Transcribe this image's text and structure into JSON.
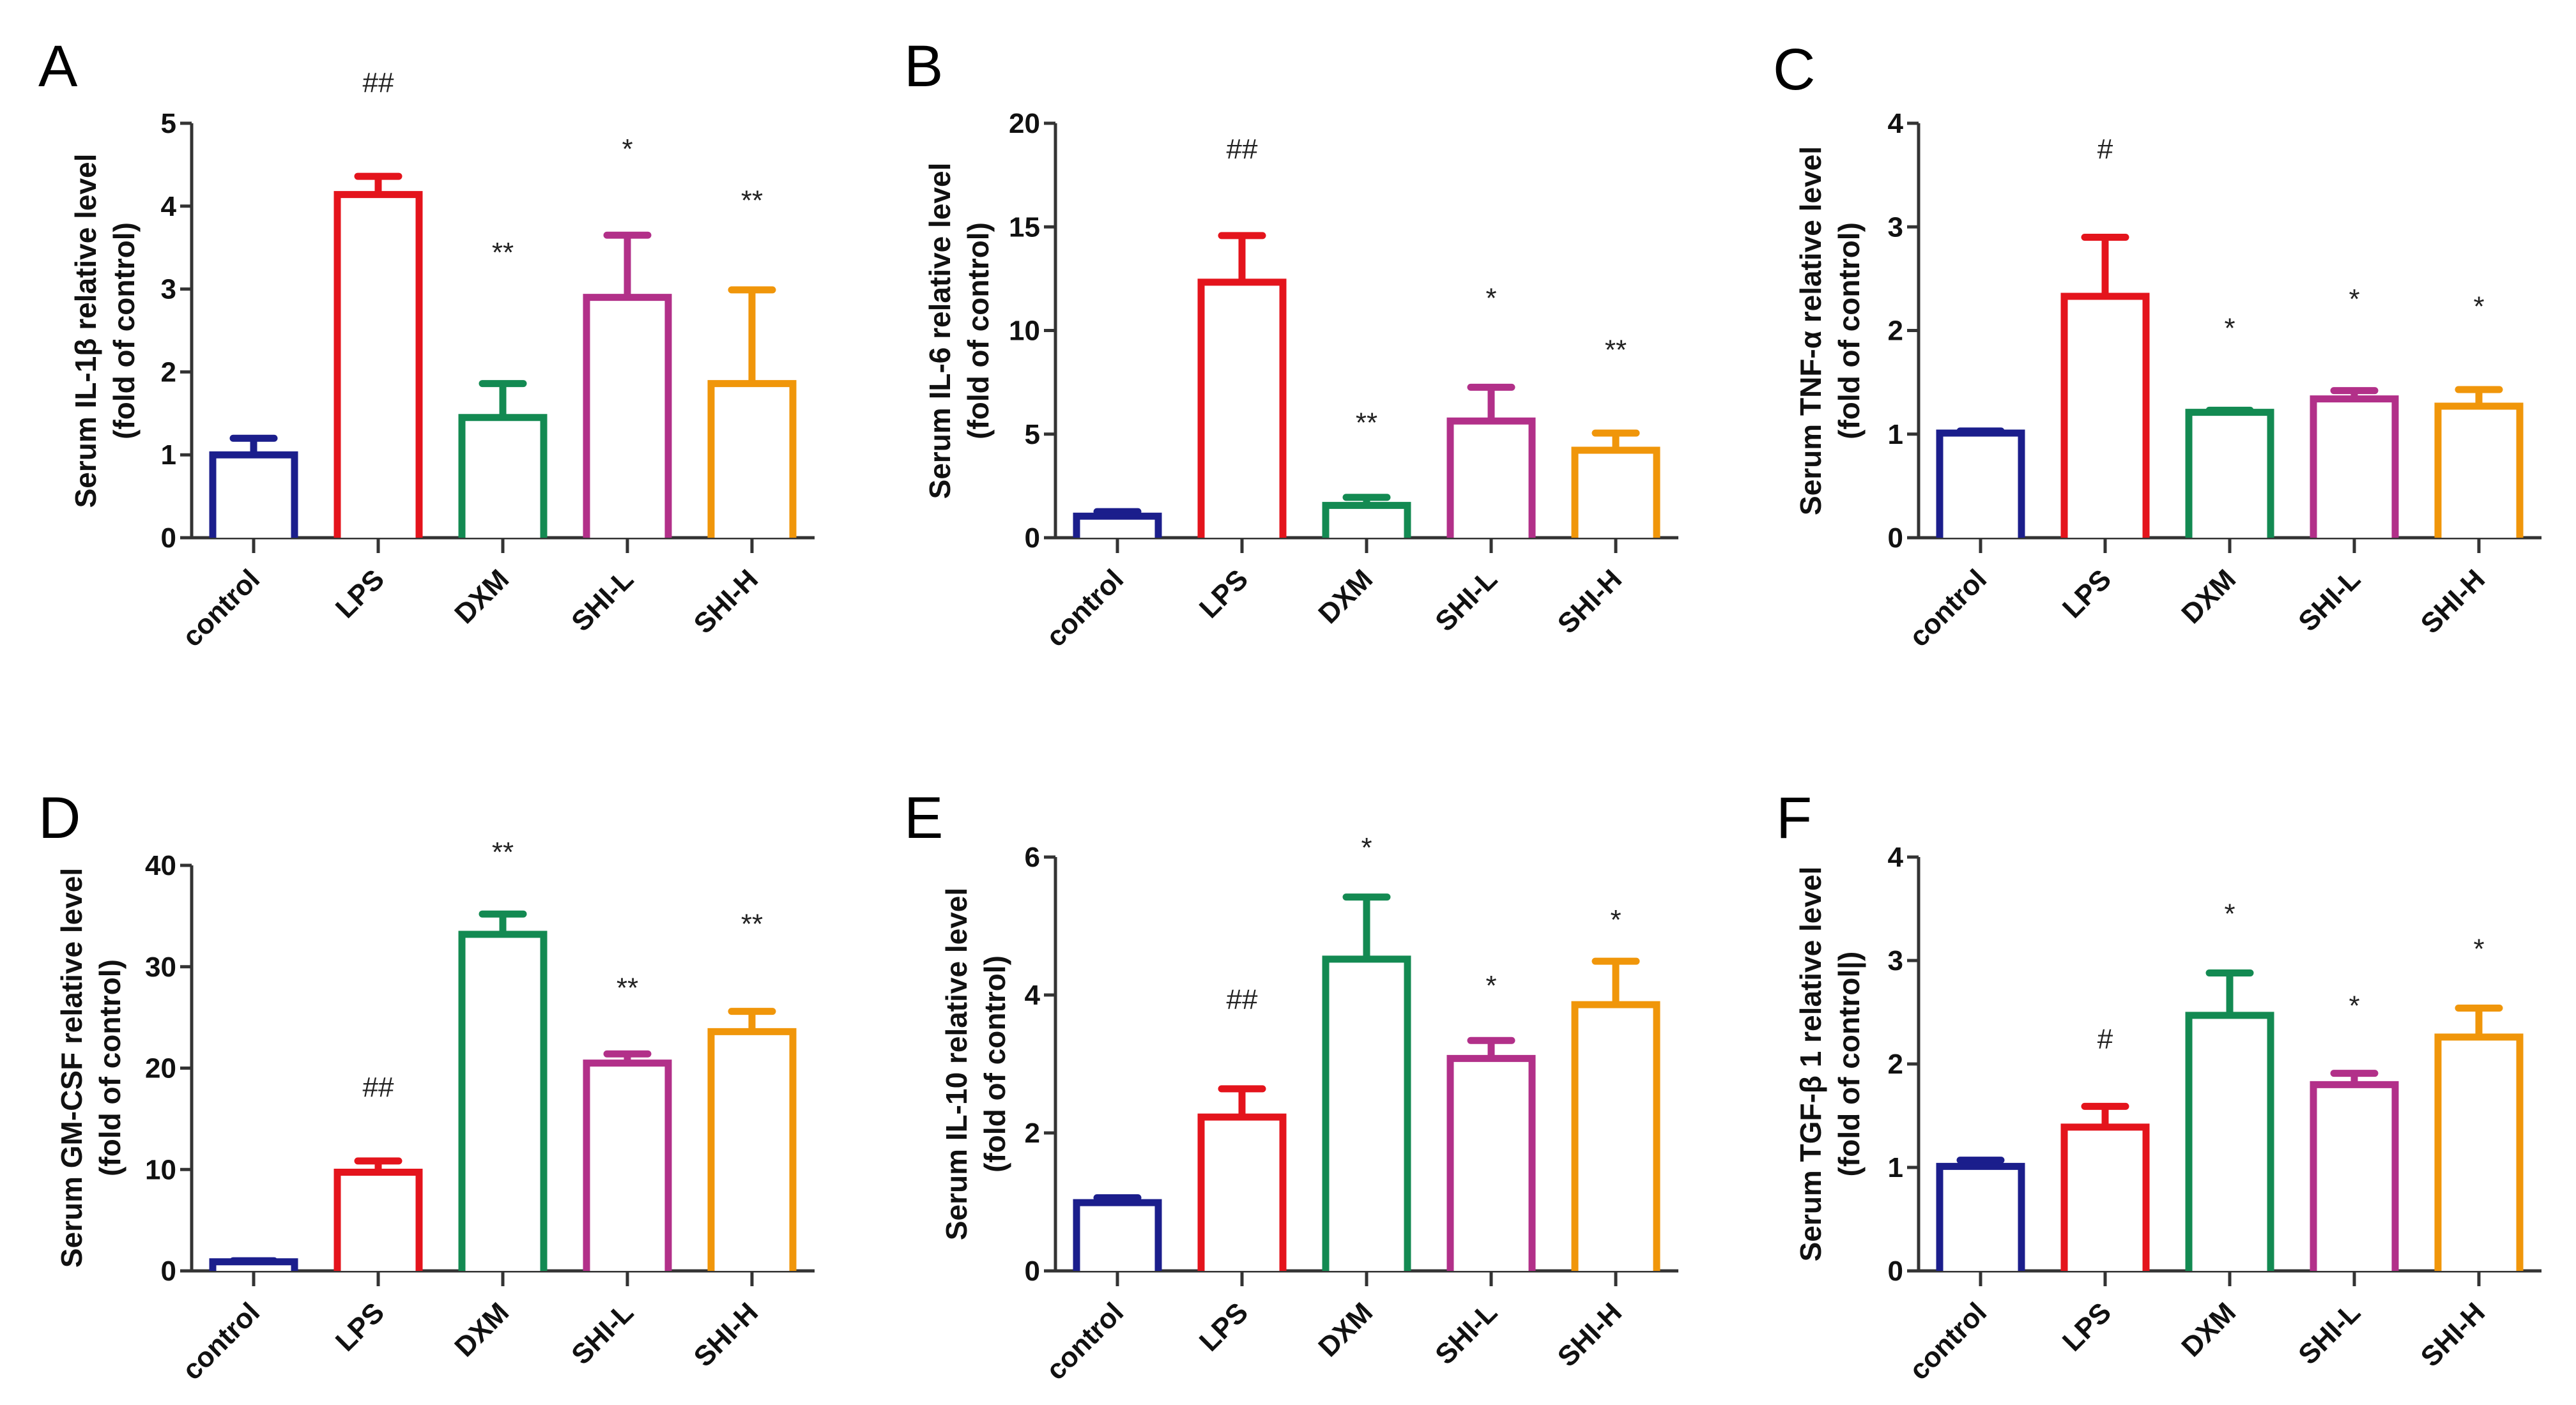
{
  "figure": {
    "categories": [
      "control",
      "LPS",
      "DXM",
      "SHI-L",
      "SHI-H"
    ],
    "colors": [
      "#1b1e8c",
      "#e4141c",
      "#138a52",
      "#b23089",
      "#f0960a"
    ]
  },
  "chart_data": [
    {
      "panel": "A",
      "type": "bar",
      "title": "",
      "ylabel": [
        "Serum IL-1β  relative level",
        "(fold of control)"
      ],
      "xlabel": "",
      "categories": [
        "control",
        "LPS",
        "DXM",
        "SHI-L",
        "SHI-H"
      ],
      "values": [
        1.0,
        4.14,
        1.45,
        2.9,
        1.86
      ],
      "error_upper": [
        1.2,
        4.36,
        1.86,
        3.65,
        2.99
      ],
      "ylim": [
        0,
        5
      ],
      "yticks": [
        0,
        1,
        2,
        3,
        4,
        5
      ],
      "annotations": [
        {
          "category": "LPS",
          "text": "##",
          "y": 5.5
        },
        {
          "category": "DXM",
          "text": "**",
          "y": 3.45
        },
        {
          "category": "SHI-L",
          "text": "*",
          "y": 4.7
        },
        {
          "category": "SHI-H",
          "text": "**",
          "y": 4.08
        }
      ],
      "grid": false,
      "legend": "none"
    },
    {
      "panel": "B",
      "type": "bar",
      "title": "",
      "ylabel": [
        "Serum IL-6 relative level",
        "(fold of control)"
      ],
      "xlabel": "",
      "categories": [
        "control",
        "LPS",
        "DXM",
        "SHI-L",
        "SHI-H"
      ],
      "values": [
        1.04,
        12.33,
        1.56,
        5.63,
        4.22
      ],
      "error_upper": [
        1.26,
        14.58,
        1.95,
        7.26,
        5.05
      ],
      "ylim": [
        0,
        20
      ],
      "yticks": [
        0,
        5,
        10,
        15,
        20
      ],
      "annotations": [
        {
          "category": "LPS",
          "text": "##",
          "y": 18.8
        },
        {
          "category": "DXM",
          "text": "**",
          "y": 5.6
        },
        {
          "category": "SHI-L",
          "text": "*",
          "y": 11.6
        },
        {
          "category": "SHI-H",
          "text": "**",
          "y": 9.1
        }
      ],
      "grid": false,
      "legend": "none"
    },
    {
      "panel": "C",
      "type": "bar",
      "title": "",
      "ylabel": [
        "Serum TNF-α  relative level",
        "(fold of control)"
      ],
      "xlabel": "",
      "categories": [
        "control",
        "LPS",
        "DXM",
        "SHI-L",
        "SHI-H"
      ],
      "values": [
        1.01,
        2.33,
        1.21,
        1.34,
        1.27
      ],
      "error_upper": [
        1.03,
        2.9,
        1.23,
        1.42,
        1.43
      ],
      "ylim": [
        0,
        4
      ],
      "yticks": [
        0,
        1,
        2,
        3,
        4
      ],
      "annotations": [
        {
          "category": "LPS",
          "text": "#",
          "y": 3.76
        },
        {
          "category": "DXM",
          "text": "*",
          "y": 2.03
        },
        {
          "category": "SHI-L",
          "text": "*",
          "y": 2.31
        },
        {
          "category": "SHI-H",
          "text": "*",
          "y": 2.24
        }
      ],
      "grid": false,
      "legend": "none"
    },
    {
      "panel": "D",
      "type": "bar",
      "title": "",
      "ylabel": [
        "Serum GM-CSF relative level",
        "(fold of control)"
      ],
      "xlabel": "",
      "categories": [
        "control",
        "LPS",
        "DXM",
        "SHI-L",
        "SHI-H"
      ],
      "values": [
        0.9,
        9.73,
        33.2,
        20.5,
        23.6
      ],
      "error_upper": [
        1.0,
        10.84,
        35.2,
        21.4,
        25.6
      ],
      "ylim": [
        0,
        40
      ],
      "yticks": [
        0,
        10,
        20,
        30,
        40
      ],
      "annotations": [
        {
          "category": "LPS",
          "text": "##",
          "y": 18.2
        },
        {
          "category": "DXM",
          "text": "**",
          "y": 41.4
        },
        {
          "category": "SHI-L",
          "text": "**",
          "y": 28.0
        },
        {
          "category": "SHI-H",
          "text": "**",
          "y": 34.3
        }
      ],
      "grid": false,
      "legend": "none"
    },
    {
      "panel": "E",
      "type": "bar",
      "title": "",
      "ylabel": [
        "Serum IL-10 relative level",
        "(fold of control)"
      ],
      "xlabel": "",
      "categories": [
        "control",
        "LPS",
        "DXM",
        "SHI-L",
        "SHI-H"
      ],
      "values": [
        0.99,
        2.23,
        4.52,
        3.08,
        3.86
      ],
      "error_upper": [
        1.06,
        2.64,
        5.42,
        3.34,
        4.49
      ],
      "ylim": [
        0,
        6
      ],
      "yticks": [
        0,
        2,
        4,
        6
      ],
      "annotations": [
        {
          "category": "LPS",
          "text": "##",
          "y": 3.95
        },
        {
          "category": "DXM",
          "text": "*",
          "y": 6.15
        },
        {
          "category": "SHI-L",
          "text": "*",
          "y": 4.15
        },
        {
          "category": "SHI-H",
          "text": "*",
          "y": 5.1
        }
      ],
      "grid": false,
      "legend": "none"
    },
    {
      "panel": "F",
      "type": "bar",
      "title": "",
      "ylabel": [
        "Serum TGF-β 1 relative level",
        "(fold of control|)"
      ],
      "xlabel": "",
      "categories": [
        "control",
        "LPS",
        "DXM",
        "SHI-L",
        "SHI-H"
      ],
      "values": [
        1.01,
        1.39,
        2.47,
        1.8,
        2.26
      ],
      "error_upper": [
        1.07,
        1.59,
        2.88,
        1.91,
        2.54
      ],
      "ylim": [
        0,
        4
      ],
      "yticks": [
        0,
        1,
        2,
        3,
        4
      ],
      "annotations": [
        {
          "category": "LPS",
          "text": "#",
          "y": 2.25
        },
        {
          "category": "DXM",
          "text": "*",
          "y": 3.46
        },
        {
          "category": "SHI-L",
          "text": "*",
          "y": 2.57
        },
        {
          "category": "SHI-H",
          "text": "*",
          "y": 3.12
        }
      ],
      "grid": false,
      "legend": "none"
    }
  ]
}
